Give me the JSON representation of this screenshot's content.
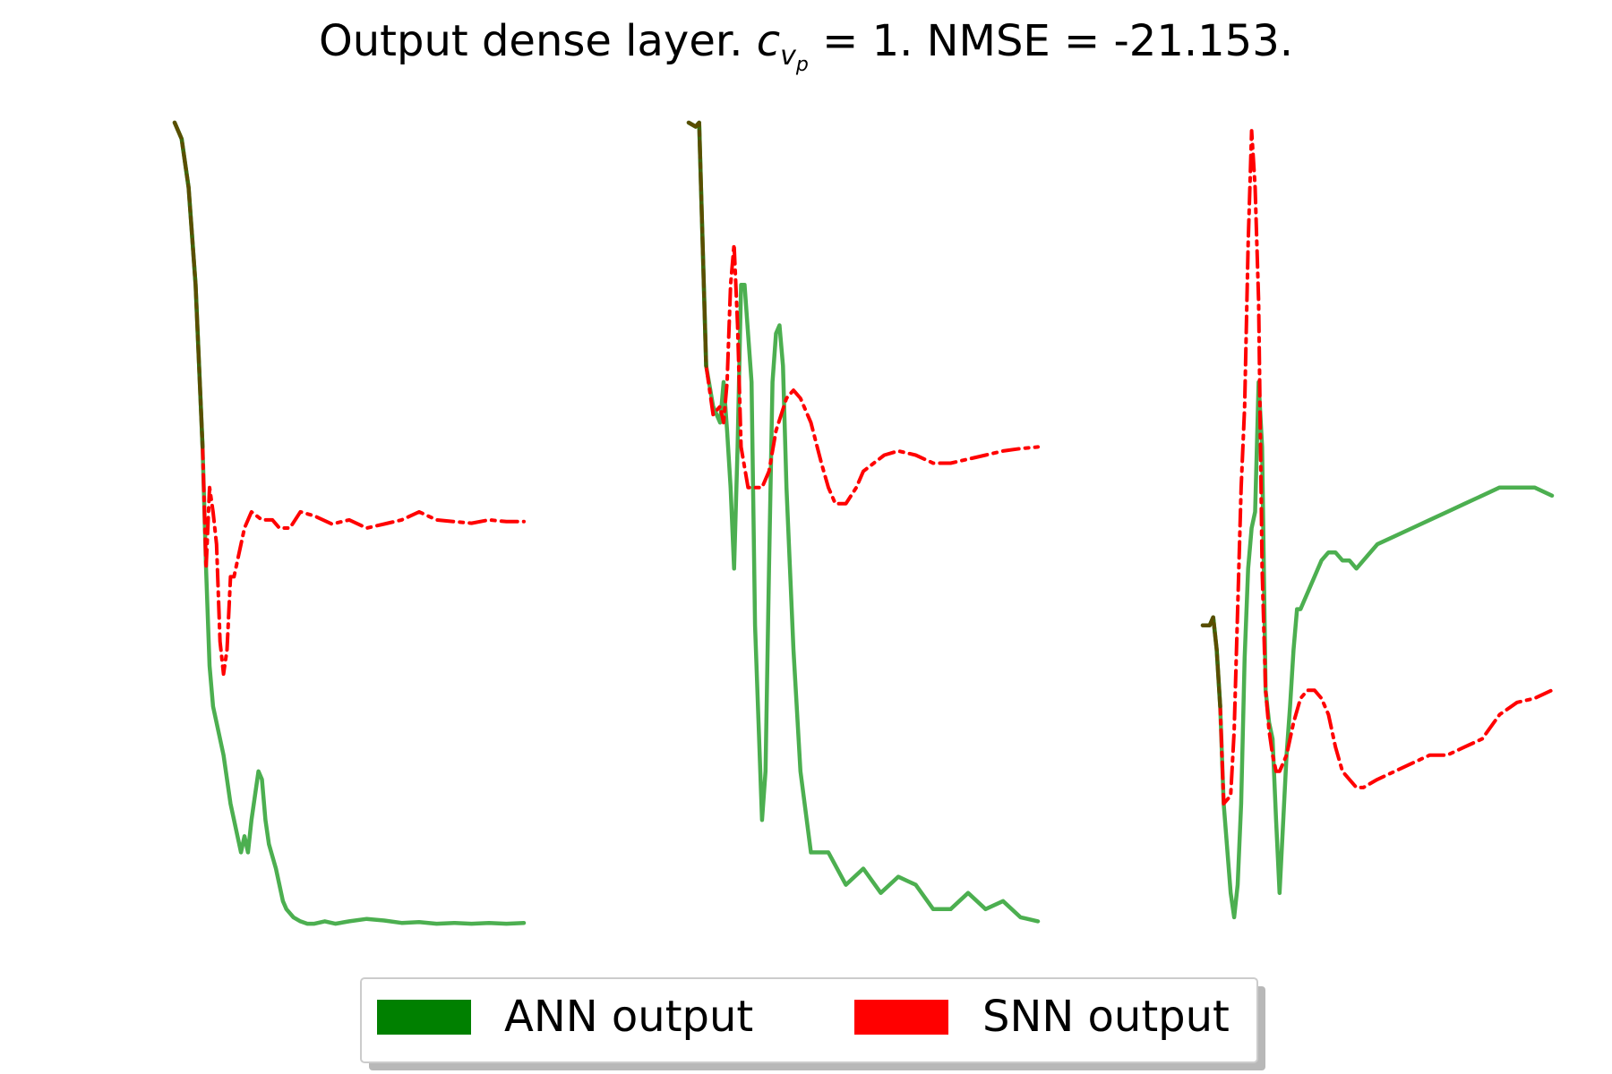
{
  "title": {
    "prefix": "Output dense layer. ",
    "symbol": "c",
    "sub1": "v",
    "sub2": "p",
    "suffix": " = 1. NMSE = -21.153."
  },
  "legend": {
    "items": [
      {
        "label": "ANN output",
        "color": "#008000"
      },
      {
        "label": "SNN output",
        "color": "#ff0000"
      }
    ]
  },
  "style": {
    "ann_color": "#4caf50",
    "ann_dark": "#3d5a00",
    "snn_color": "#ff0000"
  },
  "chart_data": [
    {
      "type": "line",
      "axes": "off",
      "grid": false,
      "xlim": [
        0,
        100
      ],
      "ylim": [
        0,
        100
      ],
      "series": [
        {
          "name": "ANN output",
          "x": [
            0,
            2,
            4,
            6,
            8,
            9,
            10,
            11,
            12,
            14,
            16,
            18,
            19,
            20,
            21,
            22,
            23,
            24,
            25,
            26,
            27,
            29,
            30,
            31,
            32,
            34,
            36,
            38,
            40,
            43,
            46,
            50,
            55,
            60,
            65,
            70,
            75,
            80,
            85,
            90,
            95,
            100
          ],
          "y": [
            100,
            98,
            92,
            80,
            60,
            45,
            33,
            28,
            26,
            22,
            16,
            12,
            10,
            12,
            10,
            14,
            17,
            20,
            19,
            14,
            11,
            8,
            6,
            4,
            3,
            2,
            1.5,
            1.2,
            1.2,
            1.5,
            1.2,
            1.5,
            1.8,
            1.6,
            1.3,
            1.4,
            1.2,
            1.3,
            1.2,
            1.3,
            1.2,
            1.3
          ]
        },
        {
          "name": "SNN output",
          "x": [
            0,
            2,
            4,
            6,
            8,
            9,
            10,
            11,
            12,
            13,
            14,
            15,
            16,
            17,
            18,
            20,
            22,
            25,
            28,
            30,
            33,
            36,
            40,
            45,
            50,
            55,
            60,
            65,
            70,
            75,
            80,
            85,
            90,
            95,
            100
          ],
          "y": [
            100,
            98,
            92,
            80,
            60,
            45,
            55,
            52,
            48,
            36,
            32,
            35,
            44,
            44,
            46,
            50,
            52,
            51,
            51,
            50,
            50,
            52,
            51.5,
            50.5,
            51,
            50,
            50.5,
            51,
            52,
            51,
            50.8,
            50.6,
            51,
            50.8,
            50.8
          ]
        }
      ]
    },
    {
      "type": "line",
      "axes": "off",
      "grid": false,
      "xlim": [
        0,
        100
      ],
      "ylim": [
        0,
        100
      ],
      "series": [
        {
          "name": "ANN output",
          "x": [
            0,
            2,
            3,
            4,
            5,
            7,
            9,
            10,
            11,
            12,
            13,
            14,
            15,
            16,
            18,
            19,
            20,
            21,
            22,
            23,
            24,
            25,
            26,
            27,
            28,
            30,
            32,
            35,
            40,
            45,
            50,
            55,
            60,
            65,
            70,
            75,
            80,
            85,
            90,
            95,
            100
          ],
          "y": [
            100,
            99.5,
            100,
            85,
            70,
            65,
            63,
            68,
            62,
            55,
            45,
            60,
            80,
            80,
            68,
            38,
            26,
            14,
            20,
            45,
            68,
            74,
            75,
            70,
            55,
            35,
            20,
            10,
            10,
            6,
            8,
            5,
            7,
            6,
            3,
            3,
            5,
            3,
            4,
            2,
            1.5
          ]
        },
        {
          "name": "SNN output",
          "x": [
            0,
            2,
            3,
            4,
            5,
            7,
            9,
            10,
            11,
            12,
            13,
            14,
            15,
            17,
            19,
            21,
            23,
            25,
            28,
            30,
            32,
            35,
            38,
            40,
            42,
            45,
            48,
            50,
            53,
            56,
            60,
            65,
            70,
            75,
            80,
            85,
            90,
            95,
            100
          ],
          "y": [
            100,
            99.5,
            100,
            85,
            70,
            64,
            65,
            63,
            68,
            80,
            85,
            75,
            60,
            55,
            55,
            55,
            57,
            62,
            66,
            67,
            66,
            63,
            58,
            55,
            53,
            53,
            55,
            57,
            58,
            59,
            59.5,
            59,
            58,
            58,
            58.5,
            59,
            59.5,
            59.8,
            60
          ]
        }
      ]
    },
    {
      "type": "line",
      "axes": "off",
      "grid": false,
      "xlim": [
        0,
        100
      ],
      "ylim": [
        0,
        100
      ],
      "series": [
        {
          "name": "ANN output",
          "x": [
            0,
            2,
            3,
            4,
            5,
            6,
            8,
            9,
            10,
            11,
            12,
            13,
            14,
            15,
            16,
            17,
            18,
            19,
            20,
            21,
            22,
            24,
            25,
            26,
            27,
            28,
            29,
            30,
            31,
            32,
            34,
            36,
            38,
            40,
            42,
            44,
            46,
            50,
            55,
            60,
            65,
            70,
            75,
            80,
            85,
            90,
            95,
            100
          ],
          "y": [
            38,
            38,
            39,
            35,
            28,
            16,
            5,
            2,
            6,
            16,
            34,
            45,
            50,
            52,
            68,
            60,
            30,
            26,
            24,
            14,
            5,
            22,
            28,
            35,
            40,
            40,
            41,
            42,
            43,
            44,
            46,
            47,
            47,
            46,
            46,
            45,
            46,
            48,
            49,
            50,
            51,
            52,
            53,
            54,
            55,
            55,
            55,
            54
          ]
        },
        {
          "name": "SNN output",
          "x": [
            0,
            2,
            3,
            4,
            5,
            6,
            8,
            9,
            10,
            11,
            12,
            13,
            14,
            15,
            16,
            17,
            18,
            19,
            20,
            21,
            22,
            24,
            26,
            28,
            30,
            32,
            34,
            36,
            38,
            40,
            42,
            44,
            46,
            48,
            50,
            55,
            60,
            65,
            70,
            75,
            80,
            85,
            90,
            95,
            100
          ],
          "y": [
            38,
            38,
            39,
            35,
            28,
            16,
            17,
            25,
            40,
            55,
            65,
            85,
            99,
            92,
            78,
            45,
            30,
            25,
            22,
            20,
            20,
            22,
            26,
            29,
            30,
            30,
            29,
            27,
            23,
            20,
            19,
            18,
            18,
            18.5,
            19,
            20,
            21,
            22,
            22,
            23,
            24,
            27,
            28.5,
            29,
            30
          ]
        }
      ]
    }
  ]
}
